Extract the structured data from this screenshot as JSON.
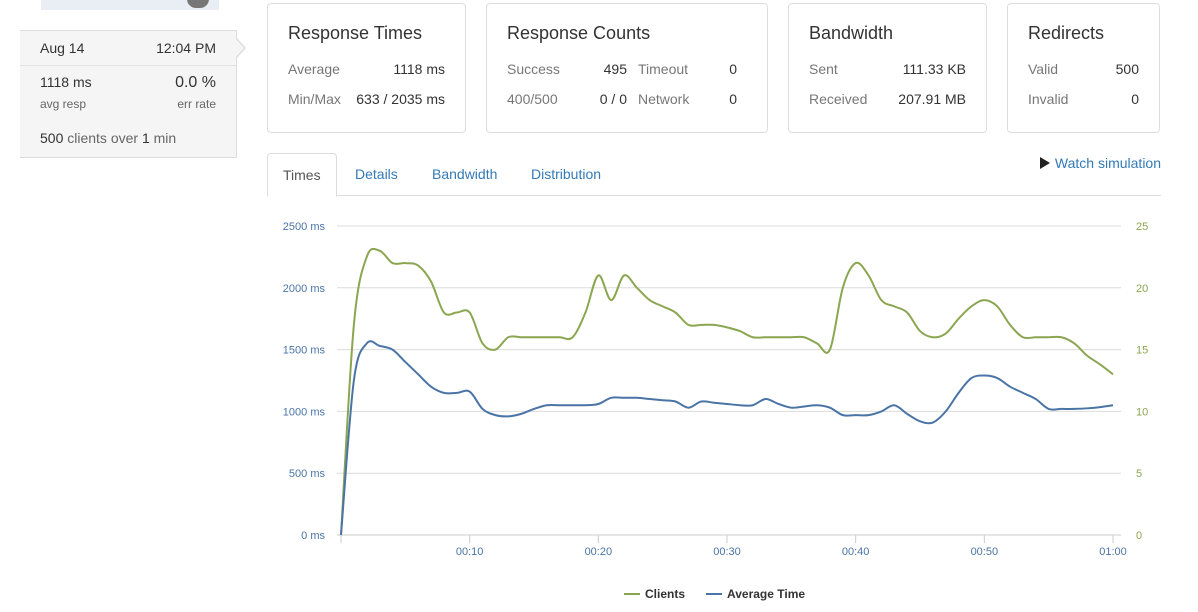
{
  "summary": {
    "date": "Aug 14",
    "time": "12:04 PM",
    "avg_resp": "1118 ms",
    "avg_resp_caption": "avg resp",
    "err_rate": "0.0 %",
    "err_rate_caption": "err rate",
    "clients_count": "500",
    "clients_mid": " clients over ",
    "duration": "1",
    "duration_unit": " min"
  },
  "cards": {
    "response_times": {
      "title": "Response Times",
      "average_label": "Average",
      "average_value": "1118 ms",
      "minmax_label": "Min/Max",
      "minmax_value": "633 / 2035 ms"
    },
    "response_counts": {
      "title": "Response Counts",
      "success_label": "Success",
      "success_value": "495",
      "timeout_label": "Timeout",
      "timeout_value": "0",
      "r400_500_label": "400/500",
      "r400_500_value": "0 / 0",
      "network_label": "Network",
      "network_value": "0"
    },
    "bandwidth": {
      "title": "Bandwidth",
      "sent_label": "Sent",
      "sent_value": "111.33 KB",
      "received_label": "Received",
      "received_value": "207.91 MB"
    },
    "redirects": {
      "title": "Redirects",
      "valid_label": "Valid",
      "valid_value": "500",
      "invalid_label": "Invalid",
      "invalid_value": "0"
    }
  },
  "tabs": [
    "Times",
    "Details",
    "Bandwidth",
    "Distribution"
  ],
  "active_tab": "Times",
  "watch_label": "Watch simulation",
  "colors": {
    "clients": "#8ba651",
    "average_time": "#4a74a6",
    "link": "#337ab7"
  },
  "chart_data": {
    "type": "line",
    "y_left_ticks": [
      "0 ms",
      "500 ms",
      "1000 ms",
      "1500 ms",
      "2000 ms",
      "2500 ms"
    ],
    "y_right_ticks": [
      "0",
      "5",
      "10",
      "15",
      "20",
      "25"
    ],
    "x_ticks": [
      "00:10",
      "00:20",
      "00:30",
      "00:40",
      "00:50",
      "01:00"
    ],
    "ylim_left": [
      0,
      2500
    ],
    "ylim_right": [
      0,
      25
    ],
    "xlim": [
      0,
      60
    ],
    "grid": true,
    "legend_position": "bottom-center",
    "series": [
      {
        "name": "Clients",
        "axis": "right",
        "color": "#8ba651",
        "x": [
          0,
          1,
          2,
          3,
          4,
          5,
          6,
          7,
          8,
          9,
          10,
          11,
          12,
          13,
          14,
          15,
          16,
          17,
          18,
          19,
          20,
          21,
          22,
          23,
          24,
          25,
          26,
          27,
          28,
          29,
          30,
          31,
          32,
          33,
          34,
          35,
          36,
          37,
          38,
          39,
          40,
          41,
          42,
          43,
          44,
          45,
          46,
          47,
          48,
          49,
          50,
          51,
          52,
          53,
          54,
          55,
          56,
          57,
          58,
          59,
          60
        ],
        "values": [
          0,
          17,
          22.5,
          23,
          22,
          22,
          21.8,
          20.5,
          18,
          18,
          18,
          15.5,
          15,
          16,
          16,
          16,
          16,
          16,
          16,
          18,
          21,
          19,
          21,
          20,
          19,
          18.5,
          18,
          17,
          17,
          17,
          16.8,
          16.5,
          16,
          16,
          16,
          16,
          16,
          15.5,
          15,
          20,
          22,
          21,
          19,
          18.5,
          18,
          16.5,
          16,
          16.3,
          17.5,
          18.5,
          19,
          18.5,
          17,
          16,
          16,
          16,
          16,
          15.5,
          14.5,
          13.8,
          13
        ]
      },
      {
        "name": "Average Time",
        "axis": "left",
        "color": "#4a74a6",
        "x": [
          0,
          1,
          2,
          3,
          4,
          5,
          6,
          7,
          8,
          9,
          10,
          11,
          12,
          13,
          14,
          15,
          16,
          17,
          18,
          19,
          20,
          21,
          22,
          23,
          24,
          25,
          26,
          27,
          28,
          29,
          30,
          31,
          32,
          33,
          34,
          35,
          36,
          37,
          38,
          39,
          40,
          41,
          42,
          43,
          44,
          45,
          46,
          47,
          48,
          49,
          50,
          51,
          52,
          53,
          54,
          55,
          56,
          57,
          58,
          59,
          60
        ],
        "values": [
          0,
          1250,
          1550,
          1530,
          1500,
          1400,
          1300,
          1200,
          1150,
          1150,
          1160,
          1020,
          970,
          960,
          980,
          1020,
          1050,
          1050,
          1050,
          1050,
          1060,
          1110,
          1110,
          1110,
          1100,
          1090,
          1080,
          1030,
          1080,
          1070,
          1060,
          1050,
          1050,
          1100,
          1060,
          1030,
          1040,
          1050,
          1030,
          970,
          970,
          970,
          1000,
          1050,
          980,
          920,
          910,
          1000,
          1150,
          1270,
          1290,
          1270,
          1200,
          1150,
          1100,
          1020,
          1020,
          1020,
          1025,
          1035,
          1050
        ]
      }
    ]
  }
}
